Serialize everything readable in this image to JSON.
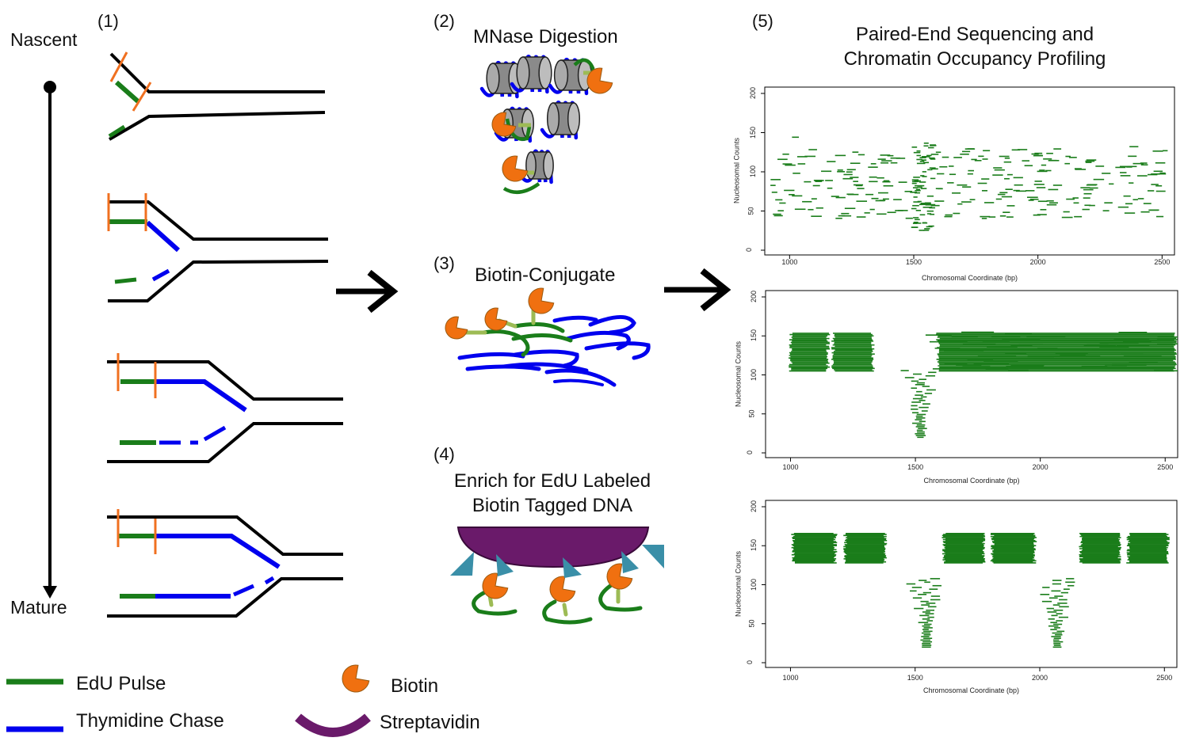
{
  "panel1": {
    "step": "(1)",
    "start_label": "Nascent",
    "end_label": "Mature"
  },
  "panel2": {
    "step": "(2)",
    "title": "MNase Digestion"
  },
  "panel3": {
    "step": "(3)",
    "title": "Biotin-Conjugate"
  },
  "panel4": {
    "step": "(4)",
    "title_line1": "Enrich for EdU Labeled",
    "title_line2": "Biotin Tagged DNA"
  },
  "panel5": {
    "step": "(5)",
    "title_line1": "Paired-End Sequencing and",
    "title_line2": "Chromatin Occupancy Profiling"
  },
  "legend": {
    "edu": "EdU Pulse",
    "thymidine": "Thymidine Chase",
    "biotin": "Biotin",
    "streptavidin": "Streptavidin"
  },
  "colors": {
    "edu": "#1a7d1a",
    "thymidine": "#0000ee",
    "biotin": "#f07010",
    "streptavidin": "#6a1a6a",
    "cut": "#f07020",
    "tag": "#3a8fa8"
  },
  "plots": {
    "xlabel": "Chromosomal Coordinate (bp)",
    "ylabel": "Nucleosomal Counts",
    "xticks": [
      "1000",
      "1500",
      "2000",
      "2500"
    ],
    "yticks": [
      "0",
      "50",
      "100",
      "150",
      "200"
    ]
  },
  "chart_data": [
    {
      "type": "scatter",
      "description_of_marks": "nucleosome fragment segments",
      "xlabel": "Chromosomal Coordinate (bp)",
      "ylabel": "Nucleosomal Counts",
      "xlim": [
        900,
        2550
      ],
      "ylim": [
        0,
        200
      ],
      "pattern": "scattered",
      "centers": [
        1540
      ],
      "y_range": [
        25,
        160
      ]
    },
    {
      "type": "scatter",
      "xlabel": "Chromosomal Coordinate (bp)",
      "ylabel": "Nucleosomal Counts",
      "xlim": [
        900,
        2550
      ],
      "ylim": [
        0,
        200
      ],
      "pattern": "blocks",
      "blocks": [
        [
          1000,
          1150
        ],
        [
          1170,
          1330
        ],
        [
          1590,
          2540
        ]
      ],
      "block_y": [
        105,
        155
      ],
      "dips": [
        1520
      ],
      "dip_y": [
        20,
        110
      ]
    },
    {
      "type": "scatter",
      "xlabel": "Chromosomal Coordinate (bp)",
      "ylabel": "Nucleosomal Counts",
      "xlim": [
        900,
        2550
      ],
      "ylim": [
        0,
        200
      ],
      "pattern": "blocks",
      "blocks": [
        [
          1010,
          1180
        ],
        [
          1220,
          1380
        ],
        [
          1615,
          1775
        ],
        [
          1810,
          1980
        ],
        [
          2165,
          2320
        ],
        [
          2355,
          2515
        ]
      ],
      "block_y": [
        128,
        167
      ],
      "dips": [
        1545,
        2070
      ],
      "dip_y": [
        20,
        110
      ]
    }
  ]
}
